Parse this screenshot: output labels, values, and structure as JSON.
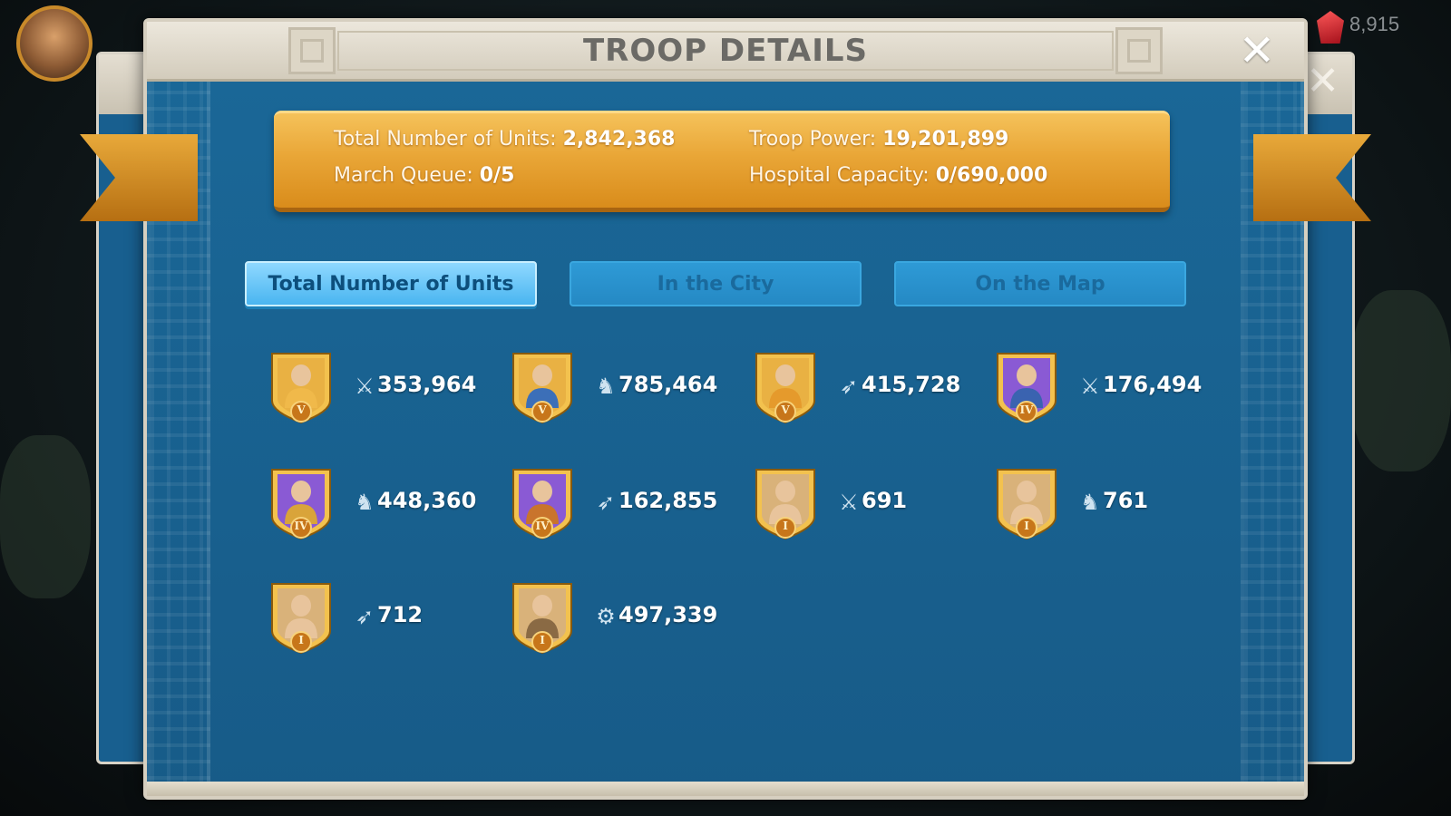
{
  "background": {
    "gem_count": "8,915"
  },
  "dialog": {
    "title": "TROOP DETAILS",
    "close_label": "✕"
  },
  "summary": {
    "total_units_label": "Total Number of Units:",
    "total_units_value": "2,842,368",
    "march_queue_label": "March Queue:",
    "march_queue_value": "0/5",
    "troop_power_label": "Troop Power:",
    "troop_power_value": "19,201,899",
    "hospital_label": "Hospital Capacity:",
    "hospital_value": "0/690,000"
  },
  "tabs": [
    {
      "label": "Total Number of Units",
      "active": true
    },
    {
      "label": "In the City",
      "active": false
    },
    {
      "label": "On the Map",
      "active": false
    }
  ],
  "troops": [
    {
      "tier": "V",
      "type": "infantry",
      "type_icon": "sword-icon",
      "count": "353,964",
      "frame": "gold",
      "figure": "#f0b94a"
    },
    {
      "tier": "V",
      "type": "cavalry",
      "type_icon": "horse-icon",
      "count": "785,464",
      "frame": "gold",
      "figure": "#3c6fb8"
    },
    {
      "tier": "V",
      "type": "archer",
      "type_icon": "bow-icon",
      "count": "415,728",
      "frame": "gold",
      "figure": "#e59a2c"
    },
    {
      "tier": "IV",
      "type": "infantry",
      "type_icon": "sword-icon",
      "count": "176,494",
      "frame": "purple",
      "figure": "#3a63b0"
    },
    {
      "tier": "IV",
      "type": "cavalry",
      "type_icon": "horse-icon",
      "count": "448,360",
      "frame": "purple",
      "figure": "#d9a43a"
    },
    {
      "tier": "IV",
      "type": "archer",
      "type_icon": "bow-icon",
      "count": "162,855",
      "frame": "purple",
      "figure": "#c9742c"
    },
    {
      "tier": "I",
      "type": "infantry",
      "type_icon": "sword-icon",
      "count": "691",
      "frame": "plain",
      "figure": "#e8c49c"
    },
    {
      "tier": "I",
      "type": "cavalry",
      "type_icon": "horse-icon",
      "count": "761",
      "frame": "plain",
      "figure": "#e8c49c"
    },
    {
      "tier": "I",
      "type": "archer",
      "type_icon": "bow-icon",
      "count": "712",
      "frame": "plain",
      "figure": "#e8c49c"
    },
    {
      "tier": "I",
      "type": "siege",
      "type_icon": "catapult-icon",
      "count": "497,339",
      "frame": "plain",
      "figure": "#8a6a44"
    }
  ],
  "colors": {
    "panel_blue": "#185d8a",
    "ribbon_gold": "#e9a637",
    "tab_active": "#49b5f0",
    "frame_gold": "#e0a92e",
    "frame_purple": "#6a3cb0"
  }
}
